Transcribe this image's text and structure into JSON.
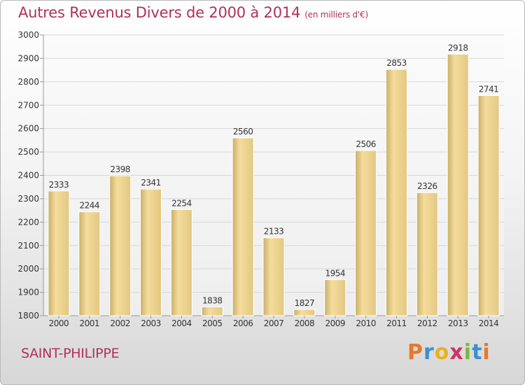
{
  "header": {
    "title": "Autres Revenus Divers de 2000 à 2014",
    "unit": "(en milliers d'€)"
  },
  "footer": {
    "commune": "SAINT-PHILIPPE",
    "logo": {
      "letters": [
        "P",
        "r",
        "o",
        "x",
        "i",
        "t",
        "i"
      ],
      "colors": [
        "#e8782a",
        "#3a8fd0",
        "#e8b21e",
        "#d0306a",
        "#7bb83a",
        "#3a8fd0",
        "#e8782a"
      ]
    }
  },
  "colors": {
    "title": "#b0305e",
    "bar_light": "#f7e0a4",
    "bar_dark": "#c8b06a",
    "grid": "#d8d8d8"
  },
  "chart_data": {
    "type": "bar",
    "title": "Autres Revenus Divers de 2000 à 2014",
    "subtitle": "(en milliers d'€)",
    "categories": [
      "2000",
      "2001",
      "2002",
      "2003",
      "2004",
      "2005",
      "2006",
      "2007",
      "2008",
      "2009",
      "2010",
      "2011",
      "2012",
      "2013",
      "2014"
    ],
    "values": [
      2333,
      2244,
      2398,
      2341,
      2254,
      1838,
      2560,
      2133,
      1827,
      1954,
      2506,
      2853,
      2326,
      2918,
      2741
    ],
    "ylim": [
      1800,
      3000
    ],
    "yticks": [
      1800,
      1900,
      2000,
      2100,
      2200,
      2300,
      2400,
      2500,
      2600,
      2700,
      2800,
      2900,
      3000
    ],
    "grid": true,
    "data_labels": true
  }
}
